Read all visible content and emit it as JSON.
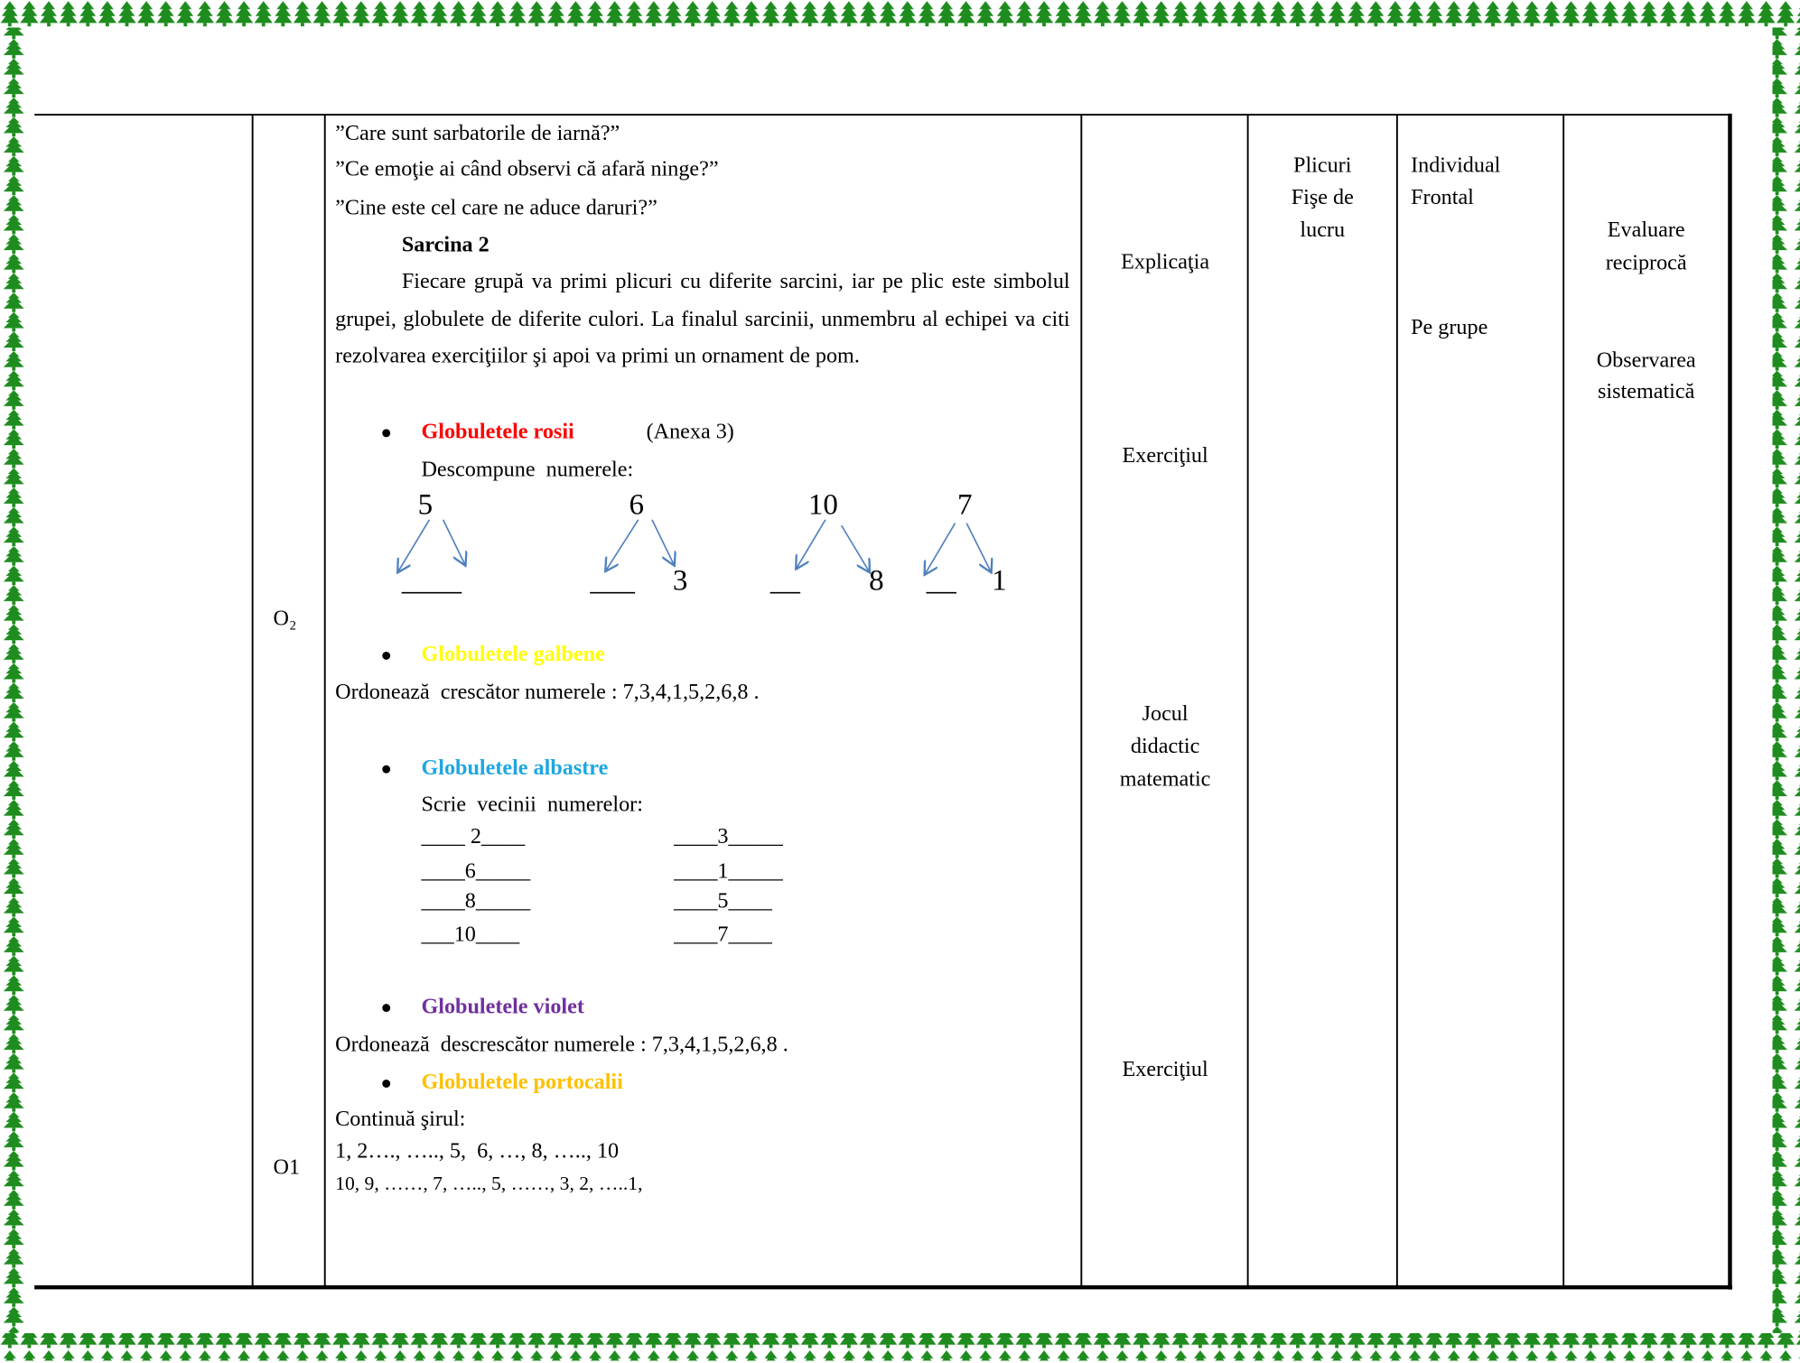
{
  "objectives": [
    "O₂",
    "O1"
  ],
  "content": {
    "questions": [
      "”Care sunt sarbatorile de iarnă?”",
      "”Ce emoţie ai când observi că afară ninge?”",
      "”Cine este cel care ne aduce daruri?”"
    ],
    "task_title": "Sarcina 2",
    "task_text": "Fiecare grupă va primi plicuri cu diferite sarcini, iar pe plic este simbolul grupei, globulete de diferite culori. La finalul sarcinii, unmembru al echipei va citi rezolvarea exerciţiilor şi apoi va primi un ornament de pom.",
    "red": {
      "title": "Globuletele rosii",
      "note": "(Anexa 3)",
      "instruction": "Descompune  numerele:",
      "numbers": [
        "5",
        "6",
        "10",
        "7"
      ],
      "blanks": [
        "____",
        "___",
        "3",
        "__",
        "8",
        "__",
        "1"
      ]
    },
    "yellow": {
      "title": "Globuletele galbene",
      "instruction": "Ordonează  crescător numerele : 7,3,4,1,5,2,6,8 ."
    },
    "blue": {
      "title": "Globuletele albastre",
      "instruction": "Scrie  vecinii  numerelor:",
      "left": [
        "____ 2____",
        "____6_____",
        "____8_____",
        "___10____"
      ],
      "right": [
        "____3_____",
        "____1_____",
        "____5____",
        "____7____"
      ]
    },
    "violet": {
      "title": "Globuletele violet",
      "instruction": "Ordonează  descrescător numerele : 7,3,4,1,5,2,6,8 ."
    },
    "orange": {
      "title": "Globuletele portocalii",
      "instruction": "Continuă şirul:",
      "rows": [
        "1, 2…., ….., 5,  6, …, 8, ….., 10",
        "10, 9, ……, 7, ….., 5, ……, 3, 2, …..1,"
      ]
    }
  },
  "methods": [
    "Explicaţia",
    "Exerciţiul",
    [
      "Jocul",
      "didactic",
      "matematic"
    ],
    "Exerciţiul"
  ],
  "resources": [
    "Plicuri",
    "Fişe de",
    "lucru"
  ],
  "forms": [
    "Individual",
    "Frontal",
    "Pe grupe"
  ],
  "evaluation": [
    [
      "Evaluare",
      "reciprocă"
    ],
    [
      "Observarea",
      "sistematică"
    ]
  ]
}
